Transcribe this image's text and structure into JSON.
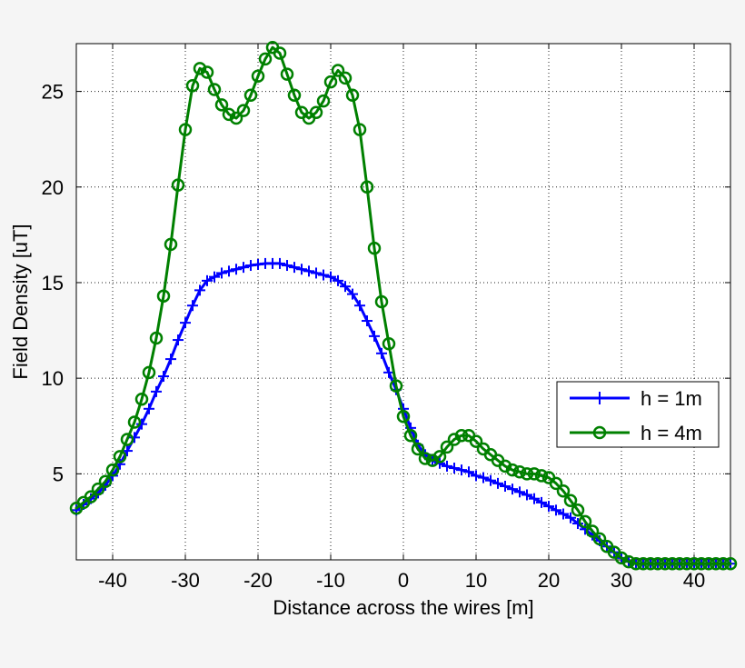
{
  "chart_data": {
    "type": "line",
    "title": "",
    "xlabel": "Distance across the wires [m]",
    "ylabel": "Field Density [uT]",
    "xlim": [
      -45,
      45
    ],
    "ylim": [
      0.5,
      27.5
    ],
    "xticks": [
      -40,
      -30,
      -20,
      -10,
      0,
      10,
      20,
      30,
      40
    ],
    "yticks": [
      5,
      10,
      15,
      20,
      25
    ],
    "grid": true,
    "legend_position": "right",
    "series": [
      {
        "name": "h = 1m",
        "color": "#0000ff",
        "marker": "plus",
        "x": [
          -45,
          -44,
          -43,
          -42,
          -41,
          -40,
          -39,
          -38,
          -37,
          -36,
          -35,
          -34,
          -33,
          -32,
          -31,
          -30,
          -29,
          -28,
          -27,
          -26,
          -25,
          -24,
          -23,
          -22,
          -21,
          -20,
          -19,
          -18,
          -17,
          -16,
          -15,
          -14,
          -13,
          -12,
          -11,
          -10,
          -9,
          -8,
          -7,
          -6,
          -5,
          -4,
          -3,
          -2,
          -1,
          0,
          1,
          2,
          3,
          4,
          5,
          6,
          7,
          8,
          9,
          10,
          11,
          12,
          13,
          14,
          15,
          16,
          17,
          18,
          19,
          20,
          21,
          22,
          23,
          24,
          25,
          26,
          27,
          28,
          29,
          30,
          31,
          32,
          33,
          34,
          35,
          36,
          37,
          38,
          39,
          40,
          41,
          42,
          43,
          44,
          45
        ],
        "y": [
          3.1,
          3.4,
          3.7,
          4.0,
          4.4,
          4.9,
          5.5,
          6.2,
          6.9,
          7.6,
          8.4,
          9.3,
          10.1,
          11.0,
          12.0,
          12.9,
          13.8,
          14.6,
          15.1,
          15.3,
          15.5,
          15.6,
          15.7,
          15.8,
          15.9,
          15.95,
          16.0,
          16.0,
          16.0,
          15.9,
          15.8,
          15.7,
          15.6,
          15.5,
          15.4,
          15.3,
          15.1,
          14.8,
          14.4,
          13.8,
          13.0,
          12.2,
          11.3,
          10.3,
          9.4,
          8.4,
          7.4,
          6.5,
          6.0,
          5.7,
          5.55,
          5.4,
          5.3,
          5.2,
          5.1,
          4.9,
          4.8,
          4.65,
          4.5,
          4.35,
          4.2,
          4.05,
          3.9,
          3.7,
          3.5,
          3.3,
          3.1,
          2.9,
          2.7,
          2.4,
          2.1,
          1.8,
          1.5,
          1.2,
          0.9,
          0.6,
          0.4,
          0.3,
          0.3,
          0.3,
          0.3,
          0.3,
          0.3,
          0.3,
          0.3,
          0.3,
          0.3,
          0.3,
          0.3,
          0.3,
          0.3
        ]
      },
      {
        "name": "h = 4m",
        "color": "#008000",
        "marker": "circle",
        "x": [
          -45,
          -44,
          -43,
          -42,
          -41,
          -40,
          -39,
          -38,
          -37,
          -36,
          -35,
          -34,
          -33,
          -32,
          -31,
          -30,
          -29,
          -28,
          -27,
          -26,
          -25,
          -24,
          -23,
          -22,
          -21,
          -20,
          -19,
          -18,
          -17,
          -16,
          -15,
          -14,
          -13,
          -12,
          -11,
          -10,
          -9,
          -8,
          -7,
          -6,
          -5,
          -4,
          -3,
          -2,
          -1,
          0,
          1,
          2,
          3,
          4,
          5,
          6,
          7,
          8,
          9,
          10,
          11,
          12,
          13,
          14,
          15,
          16,
          17,
          18,
          19,
          20,
          21,
          22,
          23,
          24,
          25,
          26,
          27,
          28,
          29,
          30,
          31,
          32,
          33,
          34,
          35,
          36,
          37,
          38,
          39,
          40,
          41,
          42,
          43,
          44,
          45
        ],
        "y": [
          3.2,
          3.5,
          3.8,
          4.2,
          4.6,
          5.2,
          5.9,
          6.8,
          7.7,
          8.9,
          10.3,
          12.1,
          14.3,
          17.0,
          20.1,
          23.0,
          25.3,
          26.2,
          26.0,
          25.1,
          24.3,
          23.8,
          23.6,
          24.0,
          24.8,
          25.8,
          26.7,
          27.3,
          27.0,
          25.9,
          24.8,
          23.9,
          23.6,
          23.9,
          24.5,
          25.5,
          26.1,
          25.7,
          24.8,
          23.0,
          20.0,
          16.8,
          14.0,
          11.8,
          9.6,
          8.0,
          7.0,
          6.3,
          5.8,
          5.7,
          5.9,
          6.4,
          6.8,
          7.0,
          7.0,
          6.7,
          6.3,
          6.0,
          5.7,
          5.4,
          5.2,
          5.1,
          5.0,
          5.0,
          4.9,
          4.8,
          4.5,
          4.1,
          3.6,
          3.1,
          2.5,
          2.0,
          1.6,
          1.2,
          0.9,
          0.6,
          0.4,
          0.3,
          0.3,
          0.3,
          0.3,
          0.3,
          0.3,
          0.3,
          0.3,
          0.3,
          0.3,
          0.3,
          0.3,
          0.3,
          0.3
        ]
      }
    ]
  },
  "legend": {
    "items": [
      {
        "label": "h = 1m"
      },
      {
        "label": "h = 4m"
      }
    ]
  }
}
